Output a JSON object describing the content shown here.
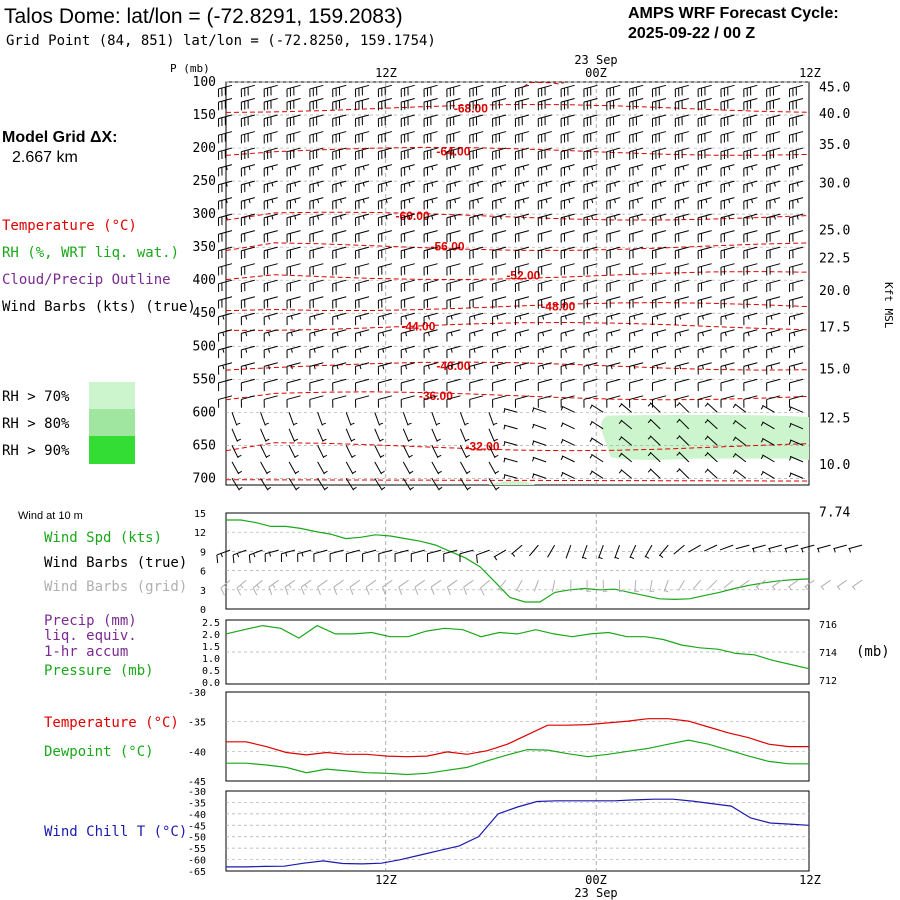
{
  "header": {
    "title": "Talos Dome:  lat/lon = (-72.8291, 159.2083)",
    "subtitle": "Grid Point (84, 851) lat/lon = (-72.8250, 159.1754)",
    "forecast_cycle_label": "AMPS WRF Forecast Cycle:",
    "forecast_cycle_value": "2025-09-22 / 00  Z"
  },
  "left_labels": {
    "model_grid_label": "Model Grid ΔX:",
    "model_grid_value": "2.667 km",
    "temperature": "Temperature (°C)",
    "rh": "RH (%, WRT liq. wat.)",
    "cloud": "Cloud/Precip Outline",
    "wind_barbs": "Wind Barbs (kts) (true)",
    "rh_legend": [
      "RH > 70%",
      "RH > 80%",
      "RH > 90%"
    ],
    "wind_10m": "Wind at 10 m",
    "wind_spd": "Wind Spd (kts)",
    "wind_barbs_true": "Wind Barbs (true)",
    "wind_barbs_grid": "Wind Barbs (grid)",
    "precip_1": "Precip (mm)",
    "precip_2": "liq. equiv.",
    "precip_3": "1-hr accum",
    "pressure": "Pressure (mb)",
    "pressure_unit": "(mb)",
    "temperature_panel": "Temperature (°C)",
    "dewpoint": "Dewpoint (°C)",
    "wind_chill": "Wind Chill T (°C)"
  },
  "colors": {
    "temperature": "#e00000",
    "rh": "#1aa81a",
    "cloud": "#7a2a90",
    "wind_chill": "#1a1ab0",
    "rh70": "#cdf5cd",
    "rh80": "#a0e6a0",
    "rh90": "#33dd33",
    "grid_barbs": "#b0b0b0"
  },
  "chart_data": [
    {
      "type": "line",
      "name": "time-height cross section",
      "x_axis": {
        "top_ticks": [
          "12Z",
          "00Z",
          "12Z"
        ],
        "date_label": "23 Sep"
      },
      "y_axis_left": {
        "label": "P (mb)",
        "ticks": [
          100,
          150,
          200,
          250,
          300,
          350,
          400,
          450,
          500,
          550,
          600,
          650,
          700
        ],
        "range": [
          100,
          710
        ]
      },
      "y_axis_right": {
        "label": "Kft MSL",
        "ticks": [
          "45.0",
          "40.0",
          "35.0",
          "30.0",
          "25.0",
          "22.5",
          "20.0",
          "17.5",
          "15.0",
          "12.5",
          "10.0",
          "7.74"
        ],
        "tick_pressures": [
          107,
          147,
          194,
          252,
          323,
          366,
          415,
          470,
          534,
          608,
          678,
          750
        ]
      },
      "temperature_contour_labels": [
        {
          "label": "-68.00",
          "p": 140,
          "t": 0.42
        },
        {
          "label": "-64.00",
          "p": 205,
          "t": 0.39
        },
        {
          "label": "-60.00",
          "p": 303,
          "t": 0.32
        },
        {
          "label": "-56.00",
          "p": 349,
          "t": 0.38
        },
        {
          "label": "-52.00",
          "p": 393,
          "t": 0.51
        },
        {
          "label": "-48.00",
          "p": 440,
          "t": 0.57
        },
        {
          "label": "-44.00",
          "p": 470,
          "t": 0.33
        },
        {
          "label": "-40.00",
          "p": 530,
          "t": 0.39
        },
        {
          "label": "-36.00",
          "p": 575,
          "t": 0.36
        },
        {
          "label": "-32.00",
          "p": 652,
          "t": 0.44
        }
      ],
      "wind_speed_by_level_kts": [
        30,
        30,
        30,
        30,
        28,
        28,
        25,
        22,
        18,
        15,
        12,
        10,
        8
      ]
    },
    {
      "type": "line",
      "name": "wind speed 10 m",
      "y_ticks": [
        0,
        3,
        6,
        9,
        12,
        15
      ],
      "ylim": [
        0,
        15
      ],
      "x_ticks": [
        0.27,
        0.64,
        1.0
      ],
      "wind_speed_kts": [
        13.9,
        13.9,
        13.5,
        12.9,
        12.9,
        12.6,
        12.1,
        11.7,
        11.0,
        11.2,
        11.6,
        11.4,
        11.0,
        10.6,
        10.0,
        9.0,
        8.0,
        6.6,
        4.2,
        1.8,
        1.1,
        1.1,
        2.6,
        3.0,
        3.2,
        3.0,
        3.1,
        2.6,
        2.1,
        1.6,
        1.5,
        1.6,
        2.1,
        2.6,
        3.2,
        3.7,
        4.1,
        4.4,
        4.6,
        4.7
      ],
      "true_barb_directions_deg": [
        250,
        250,
        250,
        255,
        255,
        255,
        255,
        255,
        255,
        255,
        255,
        255,
        255,
        255,
        255,
        255,
        250,
        240,
        230,
        220,
        210,
        200,
        200,
        200,
        200,
        205,
        210,
        220,
        230,
        240,
        245,
        250,
        255,
        255,
        255,
        255,
        255,
        255,
        255,
        255
      ]
    },
    {
      "type": "line",
      "name": "precipitation and pressure",
      "precip_ticks": [
        "2.5",
        "2.0",
        "1.5",
        "1.0",
        "0.5",
        "0.0"
      ],
      "pressure_ticks": [
        716,
        714,
        712
      ],
      "pressure_range_mb": [
        711.7,
        716.3
      ],
      "pressure_mb": [
        715.3,
        715.6,
        715.9,
        715.7,
        715.0,
        715.9,
        715.3,
        715.3,
        715.4,
        715.1,
        715.1,
        715.5,
        715.7,
        715.6,
        715.1,
        715.4,
        715.3,
        715.6,
        715.3,
        715.1,
        715.3,
        715.4,
        715.1,
        715.1,
        714.9,
        714.5,
        714.3,
        714.2,
        713.9,
        713.8,
        713.4,
        713.1,
        712.8
      ]
    },
    {
      "type": "line",
      "name": "temperature and dewpoint",
      "y_ticks": [
        -30,
        -35,
        -40,
        -45
      ],
      "ylim": [
        -45,
        -30
      ],
      "series": [
        {
          "name": "Temperature (°C)",
          "values": [
            -38.4,
            -38.4,
            -39.2,
            -40.2,
            -40.6,
            -40.2,
            -40.5,
            -40.5,
            -40.8,
            -40.9,
            -40.8,
            -40.1,
            -40.5,
            -39.9,
            -38.8,
            -37.2,
            -35.6,
            -35.6,
            -35.5,
            -35.2,
            -34.9,
            -34.5,
            -34.5,
            -34.9,
            -35.9,
            -36.9,
            -37.7,
            -38.8,
            -39.2,
            -39.2
          ]
        },
        {
          "name": "Dewpoint (°C)",
          "values": [
            -42.0,
            -42.0,
            -42.3,
            -42.7,
            -43.6,
            -43.0,
            -43.3,
            -43.6,
            -43.7,
            -43.9,
            -43.7,
            -43.2,
            -42.7,
            -41.6,
            -40.6,
            -39.7,
            -39.8,
            -40.4,
            -40.9,
            -40.5,
            -40.0,
            -39.5,
            -38.8,
            -38.1,
            -38.8,
            -39.8,
            -40.8,
            -41.7,
            -42.1,
            -42.1
          ]
        }
      ]
    },
    {
      "type": "line",
      "name": "wind chill",
      "y_ticks": [
        -30,
        -35,
        -40,
        -45,
        -50,
        -55,
        -60,
        -65
      ],
      "ylim": [
        -65,
        -30
      ],
      "x_axis_bottom": {
        "ticks": [
          "12Z",
          "00Z",
          "12Z"
        ],
        "date_label": "23 Sep"
      },
      "series": [
        {
          "name": "Wind Chill T (°C)",
          "values": [
            -63.2,
            -63.2,
            -63.0,
            -62.9,
            -61.6,
            -60.6,
            -61.7,
            -61.9,
            -61.6,
            -60.0,
            -58.0,
            -56.0,
            -54.0,
            -50.0,
            -40.0,
            -37.0,
            -34.6,
            -34.3,
            -34.3,
            -34.3,
            -34.3,
            -33.9,
            -33.6,
            -33.6,
            -34.4,
            -35.5,
            -36.6,
            -41.8,
            -44.0,
            -44.5,
            -45.0
          ]
        }
      ]
    }
  ]
}
